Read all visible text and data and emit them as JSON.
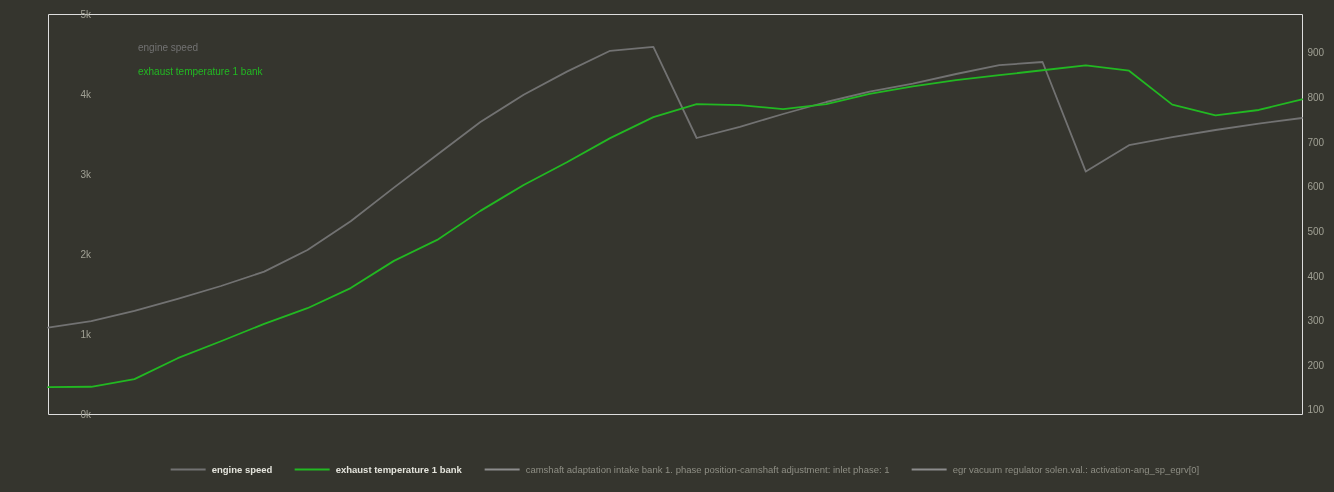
{
  "chart_data": {
    "type": "line",
    "categories": [
      null,
      null,
      null,
      null,
      null,
      null,
      null,
      null,
      null,
      null,
      null,
      null,
      null,
      null,
      null,
      null,
      null,
      null,
      null,
      null,
      null,
      null,
      null,
      null,
      null,
      null,
      null,
      null,
      null,
      null
    ],
    "series": [
      {
        "name": "engine speed",
        "color": "#727272",
        "values": [
          1080,
          1160,
          1290,
          1440,
          1600,
          1780,
          2050,
          2410,
          2830,
          3240,
          3650,
          3990,
          4280,
          4540,
          4590,
          3450,
          3590,
          3750,
          3900,
          4030,
          4130,
          4250,
          4360,
          4400,
          3030,
          3360,
          3460,
          3550,
          3630,
          3700
        ]
      },
      {
        "name": "exhaust temperature 1 bank",
        "color": "#22b822",
        "axis": "y2",
        "values": [
          151,
          152,
          169,
          216,
          254,
          293,
          328,
          373,
          434,
          481,
          546,
          604,
          655,
          709,
          756,
          785,
          783,
          774,
          785,
          808,
          825,
          839,
          850,
          861,
          872,
          860,
          784,
          760,
          772,
          796
        ]
      },
      {
        "name": "camshaft adaptation intake bank 1. phase position-camshaft adjustment: inlet phase: 1",
        "color": "#8c8c8c",
        "values": [
          null,
          null,
          null,
          null,
          null,
          null,
          null,
          null,
          null,
          null,
          null,
          null,
          null,
          null,
          null,
          null,
          null,
          null,
          null,
          null,
          null,
          null,
          null,
          null,
          null,
          null,
          null,
          null,
          null,
          null
        ]
      },
      {
        "name": "egr vacuum regulator solen.val.: activation-ang_sp_egrv[0]",
        "color": "#8c8c8c",
        "values": [
          null,
          null,
          null,
          null,
          null,
          null,
          null,
          null,
          null,
          null,
          null,
          null,
          null,
          null,
          null,
          null,
          null,
          null,
          null,
          null,
          null,
          null,
          null,
          null,
          null,
          null,
          null,
          null,
          null,
          null
        ]
      }
    ],
    "ylim": [
      0,
      5000
    ],
    "yticks": [
      {
        "value": 0,
        "label": "0k"
      },
      {
        "value": 1000,
        "label": "1k"
      },
      {
        "value": 2000,
        "label": "2k"
      },
      {
        "value": 3000,
        "label": "3k"
      },
      {
        "value": 4000,
        "label": "4k"
      },
      {
        "value": 5000,
        "label": "5k"
      }
    ],
    "y2lim": [
      91,
      987
    ],
    "y2ticks": [
      100,
      200,
      300,
      400,
      500,
      600,
      700,
      800,
      900
    ],
    "legend": "bottom"
  }
}
